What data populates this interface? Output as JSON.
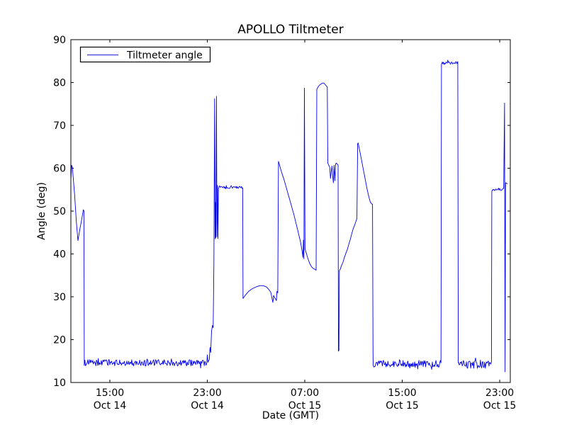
{
  "chart_data": {
    "type": "line",
    "title": "APOLLO Tiltmeter",
    "xlabel": "Date (GMT)",
    "ylabel": "Angle (deg)",
    "ylim": [
      10,
      90
    ],
    "yticks": [
      10,
      20,
      30,
      40,
      50,
      60,
      70,
      80,
      90
    ],
    "xlim_hours": [
      0,
      36.07
    ],
    "xticks": [
      {
        "t": 3.2,
        "time": "15:00",
        "date": "Oct 14"
      },
      {
        "t": 11.2,
        "time": "23:00",
        "date": "Oct 14"
      },
      {
        "t": 19.2,
        "time": "07:00",
        "date": "Oct 15"
      },
      {
        "t": 27.2,
        "time": "15:00",
        "date": "Oct 15"
      },
      {
        "t": 35.2,
        "time": "23:00",
        "date": "Oct 15"
      }
    ],
    "legend": {
      "label": "Tiltmeter angle",
      "position": "upper-left"
    },
    "series": [
      {
        "name": "Tiltmeter angle",
        "color": "#0000ee"
      }
    ],
    "background_color": "#ffffff",
    "axis_color": "#000000",
    "grid": false,
    "noise_seed": 1234,
    "segments": [
      {
        "kind": "points",
        "points": [
          [
            0,
            57.3
          ],
          [
            0.06,
            60.7
          ],
          [
            0.12,
            60.2
          ],
          [
            0.3,
            54.0
          ],
          [
            0.45,
            47.5
          ],
          [
            0.58,
            43.1
          ],
          [
            0.75,
            46.0
          ],
          [
            0.9,
            48.2
          ],
          [
            1.02,
            50.3
          ],
          [
            1.07,
            50.1
          ],
          [
            1.1,
            14.9
          ]
        ]
      },
      {
        "kind": "noise",
        "t0": 1.1,
        "t1": 11.34,
        "mean": 14.6,
        "amp": 0.75
      },
      {
        "kind": "points",
        "points": [
          [
            11.36,
            15.3
          ],
          [
            11.42,
            18.2
          ],
          [
            11.48,
            17.0
          ],
          [
            11.55,
            22.0
          ],
          [
            11.62,
            23.3
          ],
          [
            11.68,
            22.8
          ],
          [
            11.74,
            38.0
          ],
          [
            11.8,
            76.2
          ],
          [
            11.84,
            43.5
          ],
          [
            11.87,
            52.0
          ],
          [
            11.9,
            43.8
          ],
          [
            11.95,
            76.8
          ],
          [
            11.99,
            44.0
          ],
          [
            12.03,
            56.0
          ],
          [
            12.07,
            43.6
          ],
          [
            12.11,
            55.2
          ],
          [
            12.16,
            55.6
          ]
        ]
      },
      {
        "kind": "noise",
        "t0": 12.16,
        "t1": 14.08,
        "mean": 55.6,
        "amp": 0.35
      },
      {
        "kind": "points",
        "points": [
          [
            14.1,
            55.4
          ],
          [
            14.13,
            29.6
          ],
          [
            14.3,
            30.3
          ],
          [
            14.6,
            31.3
          ],
          [
            14.9,
            31.9
          ],
          [
            15.2,
            32.3
          ],
          [
            15.5,
            32.6
          ],
          [
            15.8,
            32.6
          ],
          [
            16.05,
            32.3
          ],
          [
            16.25,
            31.7
          ],
          [
            16.42,
            31.0
          ],
          [
            16.52,
            29.4
          ],
          [
            16.58,
            28.7
          ],
          [
            16.64,
            30.3
          ],
          [
            16.72,
            29.8
          ],
          [
            16.8,
            29.5
          ],
          [
            16.87,
            29.1
          ],
          [
            16.92,
            31.3
          ],
          [
            16.98,
            30.9
          ],
          [
            17.04,
            61.6
          ],
          [
            17.25,
            59.5
          ],
          [
            17.5,
            57.3
          ],
          [
            17.75,
            54.8
          ],
          [
            18.0,
            52.3
          ],
          [
            18.3,
            49.2
          ],
          [
            18.6,
            45.8
          ],
          [
            18.85,
            42.8
          ],
          [
            19.0,
            40.3
          ],
          [
            19.05,
            39.2
          ],
          [
            19.09,
            43.2
          ],
          [
            19.13,
            38.9
          ],
          [
            19.17,
            78.7
          ],
          [
            19.22,
            41.2
          ],
          [
            19.32,
            40.2
          ],
          [
            19.45,
            39.0
          ],
          [
            19.6,
            37.8
          ],
          [
            19.75,
            37.0
          ],
          [
            19.9,
            36.6
          ],
          [
            20.05,
            36.4
          ],
          [
            20.13,
            36.2
          ],
          [
            20.19,
            78.4
          ],
          [
            20.3,
            79.0
          ],
          [
            20.45,
            79.5
          ],
          [
            20.6,
            79.8
          ],
          [
            20.75,
            79.9
          ],
          [
            20.88,
            79.5
          ],
          [
            21.0,
            79.1
          ],
          [
            21.05,
            78.9
          ],
          [
            21.09,
            61.2
          ],
          [
            21.17,
            60.7
          ],
          [
            21.25,
            60.2
          ],
          [
            21.31,
            57.6
          ],
          [
            21.37,
            59.2
          ],
          [
            21.43,
            60.5
          ],
          [
            21.49,
            58.1
          ],
          [
            21.55,
            56.6
          ],
          [
            21.61,
            60.7
          ],
          [
            21.67,
            57.1
          ],
          [
            21.73,
            61.0
          ],
          [
            21.8,
            61.2
          ],
          [
            21.88,
            60.9
          ],
          [
            21.93,
            60.8
          ],
          [
            21.96,
            17.3
          ],
          [
            22.0,
            17.5
          ],
          [
            22.04,
            36.1
          ],
          [
            22.12,
            36.5
          ],
          [
            22.22,
            37.3
          ],
          [
            22.34,
            38.1
          ],
          [
            22.46,
            39.3
          ],
          [
            22.58,
            40.2
          ],
          [
            22.7,
            41.1
          ],
          [
            22.82,
            42.3
          ],
          [
            22.94,
            43.4
          ],
          [
            23.06,
            44.8
          ],
          [
            23.18,
            45.9
          ],
          [
            23.3,
            46.8
          ],
          [
            23.4,
            47.6
          ],
          [
            23.48,
            48.3
          ],
          [
            23.54,
            65.7
          ],
          [
            23.58,
            65.9
          ],
          [
            23.7,
            64.2
          ],
          [
            23.85,
            62.0
          ],
          [
            24.0,
            59.8
          ],
          [
            24.15,
            57.6
          ],
          [
            24.3,
            55.3
          ],
          [
            24.45,
            53.4
          ],
          [
            24.58,
            52.1
          ],
          [
            24.68,
            51.7
          ],
          [
            24.76,
            51.6
          ],
          [
            24.8,
            16.5
          ]
        ]
      },
      {
        "kind": "noise",
        "t0": 24.82,
        "t1": 30.36,
        "mean": 14.4,
        "amp": 0.8
      },
      {
        "kind": "points",
        "points": [
          [
            30.38,
            14.6
          ],
          [
            30.42,
            84.3
          ]
        ]
      },
      {
        "kind": "noise",
        "t0": 30.44,
        "t1": 31.74,
        "mean": 84.6,
        "amp": 0.3
      },
      {
        "kind": "points",
        "points": [
          [
            31.76,
            84.9
          ],
          [
            31.8,
            14.6
          ]
        ]
      },
      {
        "kind": "noise",
        "t0": 31.82,
        "t1": 34.52,
        "mean": 14.2,
        "amp": 0.9
      },
      {
        "kind": "points",
        "points": [
          [
            34.55,
            54.6
          ],
          [
            34.62,
            55.0
          ]
        ]
      },
      {
        "kind": "noise",
        "t0": 34.65,
        "t1": 35.5,
        "mean": 55.1,
        "amp": 0.35
      },
      {
        "kind": "points",
        "points": [
          [
            35.53,
            55.5
          ],
          [
            35.6,
            75.2
          ],
          [
            35.64,
            12.5
          ],
          [
            35.68,
            56.6
          ],
          [
            35.76,
            56.5
          ],
          [
            35.84,
            56.3
          ]
        ]
      }
    ]
  }
}
